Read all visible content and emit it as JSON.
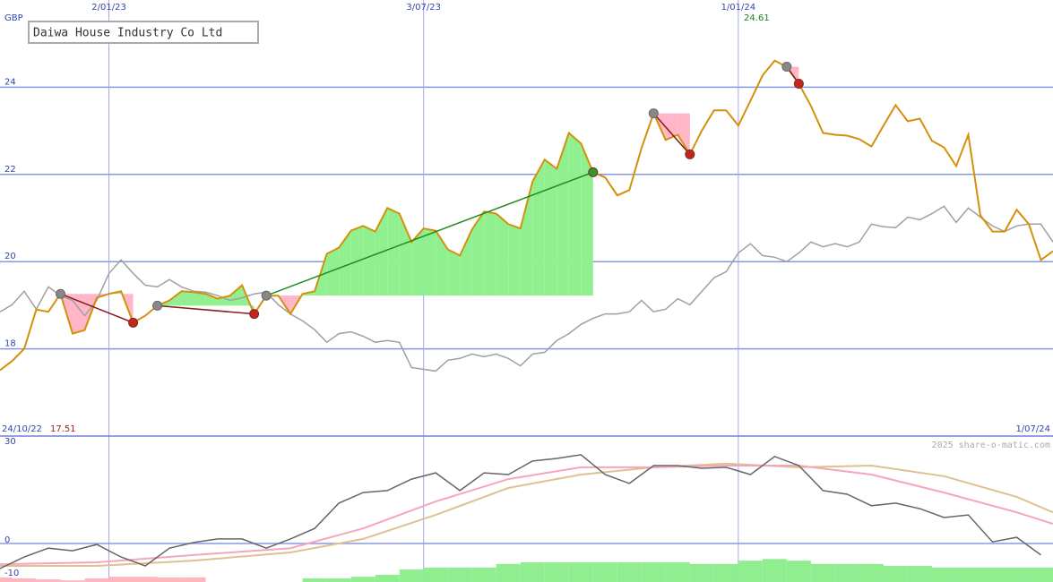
{
  "chart_data": [
    {
      "type": "line",
      "title": "Daiwa House Industry Co Ltd",
      "currency": "GBP",
      "x": [
        1,
        2,
        3,
        4,
        5,
        6,
        7,
        8,
        9,
        10,
        11,
        12,
        13,
        14,
        15,
        16,
        17,
        18,
        19,
        20,
        21,
        22,
        23,
        24,
        25,
        26,
        27,
        28,
        29,
        30,
        31,
        32,
        33,
        34,
        35,
        36,
        37,
        38,
        39,
        40,
        41,
        42,
        43,
        44,
        45,
        46,
        47,
        48,
        49,
        50,
        51,
        52,
        53,
        54,
        55,
        56,
        57,
        58,
        59,
        60,
        61,
        62,
        63,
        64,
        65,
        66,
        67,
        68,
        69,
        70,
        71,
        72,
        73,
        74,
        75,
        76,
        77,
        78,
        79,
        80,
        81,
        82,
        83,
        84,
        85,
        86,
        87,
        88
      ],
      "xlim": [
        1,
        88
      ],
      "xticks": [
        {
          "value": 1,
          "label": "24/10/22"
        },
        {
          "value": 10,
          "label": "2/01/23"
        },
        {
          "value": 36,
          "label": "3/07/23"
        },
        {
          "value": 62,
          "label": "1/01/24"
        },
        {
          "value": 88,
          "label": "1/07/24"
        }
      ],
      "ylim": [
        16,
        26
      ],
      "yticks": [
        18,
        20,
        22,
        24
      ],
      "grid": true,
      "series": [
        {
          "color": "#d4900a",
          "values": [
            17.51,
            17.72,
            18.0,
            18.9,
            18.85,
            19.26,
            18.35,
            18.43,
            19.17,
            19.26,
            19.32,
            18.6,
            18.76,
            18.99,
            19.11,
            19.32,
            19.3,
            19.26,
            19.15,
            19.22,
            19.46,
            18.8,
            19.22,
            19.22,
            18.8,
            19.26,
            19.32,
            20.18,
            20.32,
            20.71,
            20.82,
            20.69,
            21.23,
            21.1,
            20.45,
            20.76,
            20.71,
            20.28,
            20.14,
            20.74,
            21.15,
            21.1,
            20.86,
            20.76,
            21.84,
            22.34,
            22.13,
            22.95,
            22.71,
            22.05,
            21.93,
            21.52,
            21.64,
            22.6,
            23.4,
            22.79,
            22.91,
            22.46,
            23.01,
            23.47,
            23.47,
            23.12,
            23.69,
            24.27,
            24.61,
            24.47,
            24.08,
            23.57,
            22.95,
            22.91,
            22.89,
            22.81,
            22.64,
            23.12,
            23.59,
            23.22,
            23.28,
            22.77,
            22.62,
            22.19,
            22.91,
            21.06,
            20.69,
            20.69,
            21.19,
            20.86,
            20.04,
            20.24
          ]
        },
        {
          "color": "#a0a0a0",
          "values": [
            18.85,
            19.01,
            19.32,
            18.91,
            19.42,
            19.22,
            19.11,
            18.76,
            19.11,
            19.73,
            20.04,
            19.73,
            19.46,
            19.42,
            19.59,
            19.42,
            19.32,
            19.3,
            19.22,
            19.11,
            19.17,
            19.26,
            19.3,
            19.01,
            18.8,
            18.64,
            18.44,
            18.15,
            18.35,
            18.39,
            18.29,
            18.15,
            18.19,
            18.15,
            17.57,
            17.53,
            17.49,
            17.74,
            17.78,
            17.88,
            17.82,
            17.88,
            17.78,
            17.61,
            17.88,
            17.92,
            18.19,
            18.35,
            18.56,
            18.7,
            18.8,
            18.8,
            18.85,
            19.11,
            18.85,
            18.91,
            19.15,
            19.01,
            19.32,
            19.63,
            19.77,
            20.2,
            20.41,
            20.14,
            20.1,
            20.0,
            20.2,
            20.45,
            20.34,
            20.41,
            20.34,
            20.45,
            20.86,
            20.8,
            20.78,
            21.02,
            20.96,
            21.1,
            21.27,
            20.9,
            21.23,
            21.02,
            20.82,
            20.69,
            20.82,
            20.86,
            20.86,
            20.45
          ]
        }
      ],
      "high": 24.61,
      "low": 17.51,
      "trades": [
        {
          "from": 6,
          "to": 12,
          "color": "#8b1a1a",
          "exit_color": "#c0281c"
        },
        {
          "from": 14,
          "to": 22,
          "color": "#8b1a1a",
          "exit_color": "#c0281c"
        },
        {
          "from": 23,
          "to": 50,
          "color": "#228b22",
          "exit_color": "#2e9a2e"
        },
        {
          "from": 55,
          "to": 58,
          "color": "#8b1a1a",
          "exit_color": "#c0281c"
        },
        {
          "from": 66,
          "to": 67,
          "color": "#8b1a1a",
          "exit_color": "#c0281c"
        }
      ]
    },
    {
      "type": "line",
      "watermark": "2025 share-o-matic.com",
      "xlim": [
        1,
        88
      ],
      "ylim": [
        -11.7,
        32.7
      ],
      "yticks": [
        -10,
        0,
        30
      ],
      "series": [
        {
          "color": "#666666",
          "x": [
            1,
            3,
            5,
            7,
            9,
            11,
            13,
            15,
            17,
            19,
            21,
            23,
            25,
            27,
            29,
            31,
            33,
            35,
            37,
            39,
            41,
            43,
            45,
            47,
            49,
            51,
            53,
            55,
            57,
            59,
            61,
            63,
            65,
            67,
            69,
            71,
            73,
            75,
            77,
            79,
            81,
            83,
            85,
            87
          ],
          "values": [
            -7.6,
            -4.1,
            -1.4,
            -2.2,
            -0.3,
            -4.1,
            -6.8,
            -1.4,
            0.3,
            1.4,
            1.4,
            -1.4,
            1.4,
            4.6,
            12.3,
            15.5,
            16.1,
            19.6,
            21.5,
            16.1,
            21.5,
            21.0,
            25.1,
            25.9,
            27.0,
            21.0,
            18.3,
            23.7,
            23.7,
            22.9,
            23.2,
            21.0,
            26.5,
            23.7,
            16.1,
            15.0,
            11.5,
            12.3,
            10.6,
            7.9,
            8.7,
            0.5,
            1.9,
            -3.5
          ]
        },
        {
          "color": "#f4a7b9",
          "x": [
            1,
            9,
            17,
            25,
            31,
            37,
            43,
            49,
            55,
            61,
            67,
            73,
            79,
            85,
            88
          ],
          "values": [
            -6.3,
            -5.7,
            -3.5,
            -1.4,
            4.6,
            12.8,
            19.6,
            23.2,
            23.2,
            23.7,
            23.7,
            21.0,
            15.5,
            9.5,
            6.0
          ]
        },
        {
          "color": "#e0c090",
          "x": [
            1,
            9,
            17,
            25,
            31,
            37,
            43,
            49,
            55,
            61,
            67,
            73,
            79,
            85,
            88
          ],
          "values": [
            -6.8,
            -6.8,
            -5.2,
            -2.7,
            1.4,
            8.7,
            16.9,
            21.0,
            23.2,
            24.3,
            23.2,
            23.7,
            20.5,
            14.2,
            9.5
          ]
        }
      ],
      "bars": {
        "positive_color": "#90ee90",
        "negative_color": "#ffb6c1",
        "x": [
          1,
          3,
          5,
          7,
          9,
          11,
          13,
          15,
          17,
          19,
          21,
          23,
          25,
          27,
          29,
          31,
          33,
          35,
          37,
          39,
          41,
          43,
          45,
          47,
          49,
          51,
          53,
          55,
          57,
          59,
          61,
          63,
          65,
          67,
          69,
          71,
          73,
          75,
          77,
          79,
          81,
          83,
          85,
          87
        ],
        "values": [
          -1.4,
          -1.1,
          -0.8,
          -0.5,
          -1.1,
          -1.6,
          -1.6,
          -1.4,
          -1.4,
          0,
          0,
          0,
          0,
          1.1,
          1.1,
          1.6,
          2.2,
          3.8,
          4.4,
          4.4,
          4.4,
          5.5,
          6.0,
          6.0,
          6.0,
          6.0,
          6.0,
          6.0,
          6.0,
          5.5,
          5.5,
          6.5,
          7.0,
          6.5,
          5.5,
          5.5,
          5.5,
          4.9,
          4.9,
          4.4,
          4.4,
          4.4,
          4.4,
          4.4
        ]
      }
    }
  ]
}
